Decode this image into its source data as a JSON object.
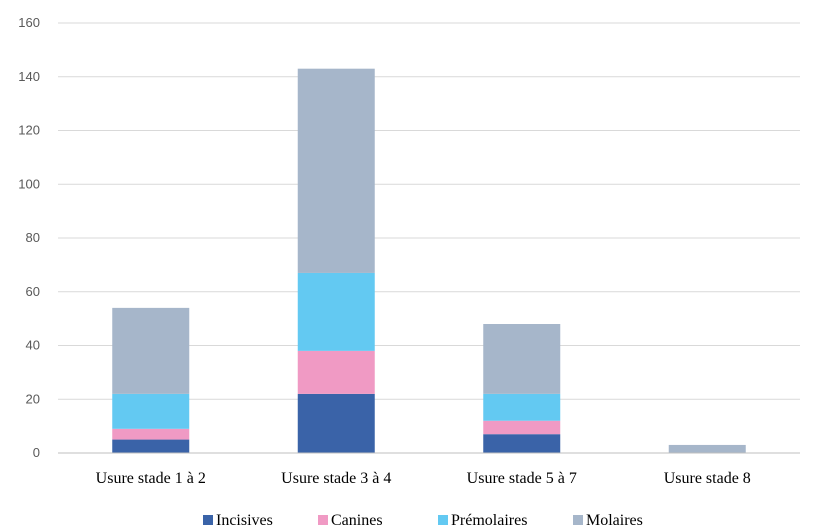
{
  "chart_data": {
    "type": "bar",
    "stacked": true,
    "title": "",
    "xlabel": "",
    "ylabel": "",
    "categories": [
      "Usure stade 1 à 2",
      "Usure stade 3 à 4",
      "Usure stade 5 à 7",
      "Usure stade 8"
    ],
    "series": [
      {
        "name": "Incisives",
        "color": "#3a63a8",
        "values": [
          5,
          22,
          7,
          0
        ]
      },
      {
        "name": "Canines",
        "color": "#f09ac4",
        "values": [
          4,
          16,
          5,
          0
        ]
      },
      {
        "name": "Prémolaires",
        "color": "#63c9f2",
        "values": [
          13,
          29,
          10,
          0
        ]
      },
      {
        "name": "Molaires",
        "color": "#a6b6ca",
        "values": [
          32,
          76,
          26,
          3
        ]
      }
    ],
    "ylim": [
      0,
      160
    ],
    "yticks": [
      "0",
      "20",
      "40",
      "60",
      "80",
      "100",
      "120",
      "140",
      "160"
    ],
    "grid": true,
    "legend_position": "bottom"
  }
}
